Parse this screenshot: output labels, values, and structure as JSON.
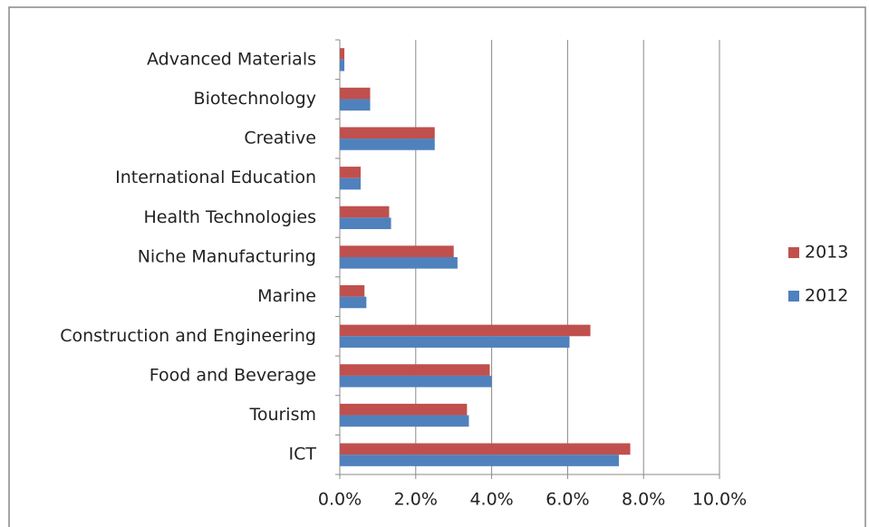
{
  "chart_data": {
    "type": "bar",
    "orientation": "horizontal",
    "categories": [
      "Advanced Materials",
      "Biotechnology",
      "Creative",
      "International Education",
      "Health Technologies",
      "Niche Manufacturing",
      "Marine",
      "Construction and Engineering",
      "Food and Beverage",
      "Tourism",
      "ICT"
    ],
    "series": [
      {
        "name": "2013",
        "color": "#c0504d",
        "values": [
          0.12,
          0.8,
          2.5,
          0.55,
          1.3,
          3.0,
          0.65,
          6.6,
          3.95,
          3.35,
          7.65
        ]
      },
      {
        "name": "2012",
        "color": "#4f81bd",
        "values": [
          0.12,
          0.8,
          2.5,
          0.55,
          1.35,
          3.1,
          0.7,
          6.05,
          4.0,
          3.4,
          7.35
        ]
      }
    ],
    "xlim": [
      0,
      10
    ],
    "xticks": [
      {
        "value": 0,
        "label": "0.0%"
      },
      {
        "value": 2,
        "label": "2.0%"
      },
      {
        "value": 4,
        "label": "4.0%"
      },
      {
        "value": 6,
        "label": "6.0%"
      },
      {
        "value": 8,
        "label": "8.0%"
      },
      {
        "value": 10,
        "label": "10.0%"
      }
    ],
    "grid": true,
    "legend": "right"
  }
}
